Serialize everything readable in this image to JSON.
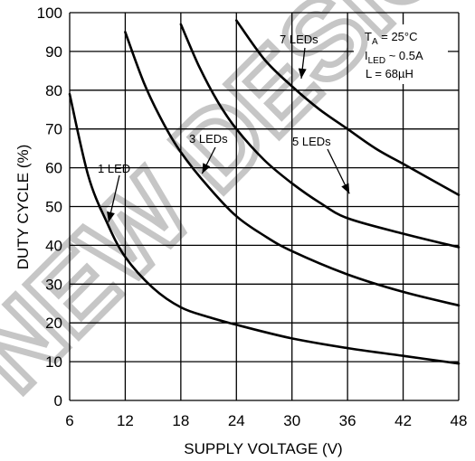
{
  "chart_data": {
    "type": "line",
    "xlabel": "SUPPLY VOLTAGE (V)",
    "ylabel": "DUTY CYCLE (%)",
    "xlim": [
      6,
      48
    ],
    "ylim": [
      0,
      100
    ],
    "xticks": [
      "6",
      "12",
      "18",
      "24",
      "30",
      "36",
      "42",
      "48"
    ],
    "yticks": [
      "0",
      "10",
      "20",
      "30",
      "40",
      "50",
      "60",
      "70",
      "80",
      "90",
      "100"
    ],
    "grid": true,
    "conditions": {
      "ta_main": "T",
      "ta_sub": "A",
      "ta_rest": " = 25°C",
      "iled_main": "I",
      "iled_sub": "LED",
      "iled_rest": " ~ 0.5A",
      "l_line": "L = 68µH"
    },
    "series": [
      {
        "name": "1 LED",
        "x": [
          6,
          8,
          10,
          12,
          15,
          18,
          21,
          24,
          30,
          36,
          42,
          48
        ],
        "y": [
          79,
          58,
          46,
          37,
          29,
          24,
          21.5,
          19.5,
          16,
          13.5,
          11.5,
          9.5
        ]
      },
      {
        "name": "3 LEDs",
        "x": [
          12,
          14,
          16,
          18,
          21,
          24,
          27,
          30,
          36,
          42,
          48
        ],
        "y": [
          95,
          82,
          72,
          64,
          55,
          47.5,
          42.5,
          38.5,
          32.5,
          28,
          24.5
        ]
      },
      {
        "name": "5 LEDs",
        "x": [
          18,
          20,
          22,
          24,
          27,
          30,
          33,
          36,
          42,
          48
        ],
        "y": [
          97,
          86,
          77,
          70,
          62,
          56,
          51,
          47,
          43,
          39.5
        ]
      },
      {
        "name": "7 LEDs",
        "x": [
          24,
          27,
          30,
          33,
          36,
          39,
          42,
          45,
          48
        ],
        "y": [
          98,
          88,
          81,
          75,
          70,
          65,
          61,
          57,
          53
        ]
      }
    ],
    "annotations": [
      {
        "series": "1 LED",
        "label": "1 LED",
        "at": [
          10.2,
          46
        ]
      },
      {
        "series": "3 LEDs",
        "label": "3 LEDs",
        "at": [
          20.3,
          58.5
        ]
      },
      {
        "series": "5 LEDs",
        "label": "5 LEDs",
        "at": [
          36.2,
          53.3
        ]
      },
      {
        "series": "7 LEDs",
        "label": "7 LEDs",
        "at": [
          31.0,
          83.0
        ]
      }
    ]
  },
  "watermark": {
    "text": "NEW DESIGNS"
  }
}
